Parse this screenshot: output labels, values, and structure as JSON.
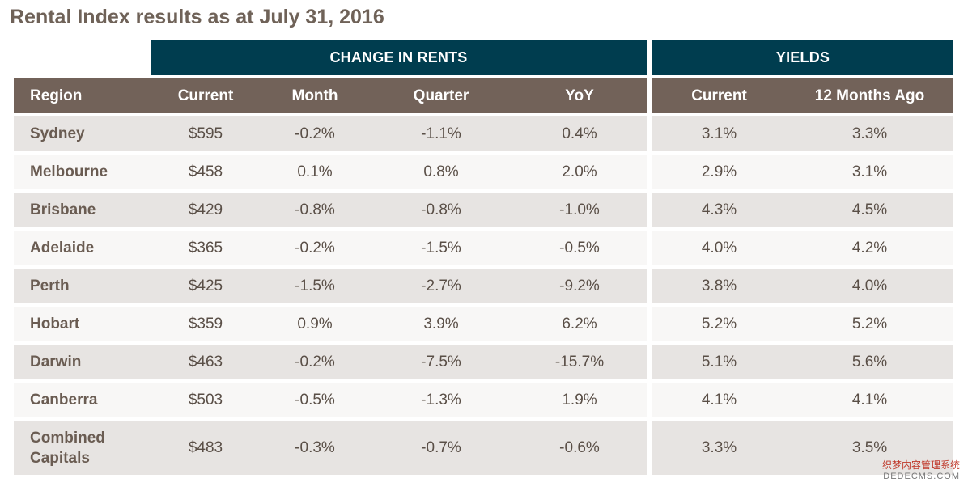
{
  "title": "Rental Index results as at July 31, 2016",
  "group_headers": {
    "rents": "CHANGE IN RENTS",
    "yields": "YIELDS"
  },
  "columns": {
    "region": "Region",
    "current": "Current",
    "month": "Month",
    "quarter": "Quarter",
    "yoy": "YoY",
    "yield_current": "Current",
    "yield_12m": "12 Months Ago"
  },
  "rows": [
    {
      "region": "Sydney",
      "current": "$595",
      "month": "-0.2%",
      "quarter": "-1.1%",
      "yoy": "0.4%",
      "yield_current": "3.1%",
      "yield_12m": "3.3%"
    },
    {
      "region": "Melbourne",
      "current": "$458",
      "month": "0.1%",
      "quarter": "0.8%",
      "yoy": "2.0%",
      "yield_current": "2.9%",
      "yield_12m": "3.1%"
    },
    {
      "region": "Brisbane",
      "current": "$429",
      "month": "-0.8%",
      "quarter": "-0.8%",
      "yoy": "-1.0%",
      "yield_current": "4.3%",
      "yield_12m": "4.5%"
    },
    {
      "region": "Adelaide",
      "current": "$365",
      "month": "-0.2%",
      "quarter": "-1.5%",
      "yoy": "-0.5%",
      "yield_current": "4.0%",
      "yield_12m": "4.2%"
    },
    {
      "region": "Perth",
      "current": "$425",
      "month": "-1.5%",
      "quarter": "-2.7%",
      "yoy": "-9.2%",
      "yield_current": "3.8%",
      "yield_12m": "4.0%"
    },
    {
      "region": "Hobart",
      "current": "$359",
      "month": "0.9%",
      "quarter": "3.9%",
      "yoy": "6.2%",
      "yield_current": "5.2%",
      "yield_12m": "5.2%"
    },
    {
      "region": "Darwin",
      "current": "$463",
      "month": "-0.2%",
      "quarter": "-7.5%",
      "yoy": "-15.7%",
      "yield_current": "5.1%",
      "yield_12m": "5.6%"
    },
    {
      "region": "Canberra",
      "current": "$503",
      "month": "-0.5%",
      "quarter": "-1.3%",
      "yoy": "1.9%",
      "yield_current": "4.1%",
      "yield_12m": "4.1%"
    },
    {
      "region": "Combined Capitals",
      "current": "$483",
      "month": "-0.3%",
      "quarter": "-0.7%",
      "yoy": "-0.6%",
      "yield_current": "3.3%",
      "yield_12m": "3.5%"
    }
  ],
  "watermark": {
    "line1": "织梦内容管理系统",
    "line2": "DEDECMS.COM"
  }
}
